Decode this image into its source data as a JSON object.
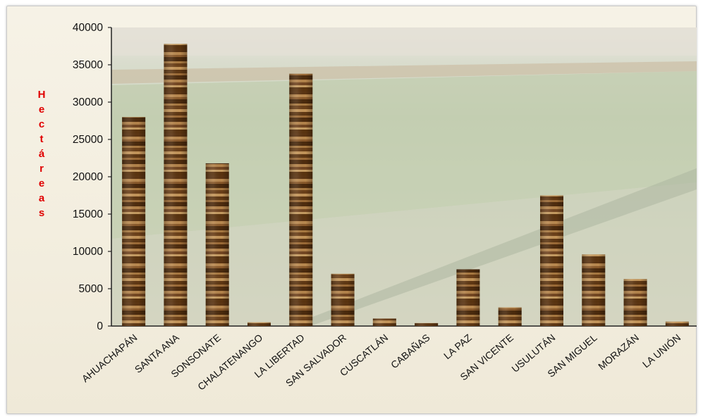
{
  "chart_data": {
    "type": "bar",
    "title": "",
    "xlabel": "",
    "ylabel": "Hectáreas",
    "ylim": [
      0,
      40000
    ],
    "yticks": [
      0,
      5000,
      10000,
      15000,
      20000,
      25000,
      30000,
      35000,
      40000
    ],
    "grid": false,
    "legend": "none",
    "categories": [
      "AHUACHAPÁN",
      "SANTA ANA",
      "SONSONATE",
      "CHALATENANGO",
      "LA LIBERTAD",
      "SAN SALVADOR",
      "CUSCATLÁN",
      "CABAÑAS",
      "LA PAZ",
      "SAN VICENTE",
      "USULUTÁN",
      "SAN MIGUEL",
      "MORAZÁN",
      "LA UNIÓN"
    ],
    "values": [
      28000,
      37800,
      21800,
      500,
      33800,
      7000,
      1000,
      400,
      7600,
      2500,
      17500,
      9600,
      6300,
      600
    ],
    "colors": {
      "bar_dark": "#5a3412",
      "bar_mid": "#8a5a2b",
      "bar_light": "#b8884f",
      "ylabel": "#e00000",
      "axis": "#222222"
    }
  }
}
